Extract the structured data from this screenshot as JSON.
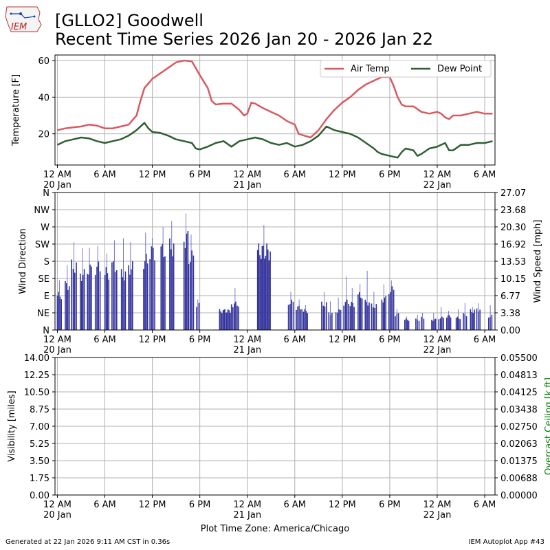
{
  "header": {
    "title_line1": "[GLLO2] Goodwell",
    "title_line2": "Recent Time Series 2026 Jan 20 - 2026 Jan 22",
    "logo_text": "IEM"
  },
  "footer": {
    "generated": "Generated at 22 Jan 2026 9:11 AM CST in 0.36s",
    "app": "IEM Autoplot App #43",
    "timezone_label": "Plot Time Zone: America/Chicago"
  },
  "colors": {
    "air_temp": "#d9595f",
    "dew_point": "#2e5e32",
    "wind_bar": "#333399",
    "ceiling_label": "#008000",
    "grid": "#b0b0b0"
  },
  "x_axis": {
    "range_hours": [
      -0.3,
      55.3
    ],
    "ticks": [
      {
        "hour": 0,
        "label": "12 AM",
        "date": "20 Jan"
      },
      {
        "hour": 6,
        "label": "6 AM",
        "date": ""
      },
      {
        "hour": 12,
        "label": "12 PM",
        "date": ""
      },
      {
        "hour": 18,
        "label": "6 PM",
        "date": ""
      },
      {
        "hour": 24,
        "label": "12 AM",
        "date": "21 Jan"
      },
      {
        "hour": 30,
        "label": "6 AM",
        "date": ""
      },
      {
        "hour": 36,
        "label": "12 PM",
        "date": ""
      },
      {
        "hour": 42,
        "label": "6 PM",
        "date": ""
      },
      {
        "hour": 48,
        "label": "12 AM",
        "date": "22 Jan"
      },
      {
        "hour": 54,
        "label": "6 AM",
        "date": ""
      }
    ]
  },
  "chart_data": [
    {
      "type": "line",
      "ylabel": "Temperature [F]",
      "ylim": [
        3,
        63
      ],
      "yticks": [
        20,
        40,
        60
      ],
      "grid": true,
      "legend_placement": "top-right",
      "series": [
        {
          "name": "Air Temp",
          "color": "#d9595f",
          "points": [
            [
              0,
              22
            ],
            [
              1,
              23
            ],
            [
              2,
              23.5
            ],
            [
              3,
              24
            ],
            [
              4,
              25
            ],
            [
              5,
              24.5
            ],
            [
              6,
              23
            ],
            [
              7,
              23
            ],
            [
              8,
              24
            ],
            [
              9,
              25
            ],
            [
              10,
              30
            ],
            [
              10.5,
              38
            ],
            [
              11,
              45
            ],
            [
              12,
              50
            ],
            [
              13,
              53
            ],
            [
              14,
              56
            ],
            [
              15,
              59
            ],
            [
              16,
              60
            ],
            [
              17,
              59.5
            ],
            [
              18,
              52
            ],
            [
              19,
              45
            ],
            [
              19.5,
              38
            ],
            [
              20,
              36
            ],
            [
              21,
              36.5
            ],
            [
              22,
              36.5
            ],
            [
              23,
              33
            ],
            [
              23.6,
              30
            ],
            [
              24,
              31
            ],
            [
              24.5,
              37
            ],
            [
              25,
              36.5
            ],
            [
              26,
              34
            ],
            [
              27,
              32
            ],
            [
              28,
              30
            ],
            [
              29,
              27
            ],
            [
              30,
              25
            ],
            [
              30.5,
              20
            ],
            [
              31.2,
              19
            ],
            [
              32,
              18
            ],
            [
              33,
              22
            ],
            [
              34,
              28
            ],
            [
              35,
              33
            ],
            [
              36,
              37
            ],
            [
              37,
              40
            ],
            [
              38,
              44
            ],
            [
              39,
              47
            ],
            [
              40,
              49
            ],
            [
              41,
              51
            ],
            [
              42,
              51
            ],
            [
              42.5,
              46
            ],
            [
              43,
              40
            ],
            [
              43.5,
              36
            ],
            [
              44,
              35
            ],
            [
              45,
              35
            ],
            [
              46,
              32
            ],
            [
              47,
              31
            ],
            [
              48,
              32
            ],
            [
              48.5,
              31
            ],
            [
              49,
              29
            ],
            [
              49.5,
              28
            ],
            [
              50,
              30
            ],
            [
              51,
              30
            ],
            [
              52,
              31
            ],
            [
              53,
              32
            ],
            [
              54,
              31
            ],
            [
              55,
              31
            ]
          ]
        },
        {
          "name": "Dew Point",
          "color": "#2e5e32",
          "points": [
            [
              0,
              14
            ],
            [
              1,
              16
            ],
            [
              2,
              17
            ],
            [
              3,
              18
            ],
            [
              4,
              17.5
            ],
            [
              5,
              16
            ],
            [
              6,
              15
            ],
            [
              7,
              16
            ],
            [
              8,
              17
            ],
            [
              9,
              19
            ],
            [
              10,
              22
            ],
            [
              11,
              26
            ],
            [
              11.5,
              23
            ],
            [
              12,
              21
            ],
            [
              13,
              20.5
            ],
            [
              14,
              19
            ],
            [
              15,
              17
            ],
            [
              16,
              16
            ],
            [
              17,
              15
            ],
            [
              17.5,
              12
            ],
            [
              18,
              11.5
            ],
            [
              19,
              13
            ],
            [
              20,
              15
            ],
            [
              21,
              16
            ],
            [
              22,
              13
            ],
            [
              23,
              16
            ],
            [
              24,
              17
            ],
            [
              25,
              18
            ],
            [
              26,
              17
            ],
            [
              27,
              15
            ],
            [
              28,
              14
            ],
            [
              29,
              15
            ],
            [
              30,
              13
            ],
            [
              31,
              14
            ],
            [
              32,
              16
            ],
            [
              33,
              19
            ],
            [
              34,
              24
            ],
            [
              35,
              22
            ],
            [
              36,
              21
            ],
            [
              37,
              20
            ],
            [
              38,
              18
            ],
            [
              39,
              15
            ],
            [
              40,
              12
            ],
            [
              40.5,
              10
            ],
            [
              41,
              9
            ],
            [
              42,
              8
            ],
            [
              43,
              7
            ],
            [
              43.5,
              10
            ],
            [
              44,
              12
            ],
            [
              45,
              11
            ],
            [
              45.5,
              8
            ],
            [
              46,
              9
            ],
            [
              47,
              12
            ],
            [
              48,
              13
            ],
            [
              49,
              15
            ],
            [
              49.5,
              11
            ],
            [
              50,
              11
            ],
            [
              51,
              14
            ],
            [
              52,
              14
            ],
            [
              53,
              15
            ],
            [
              54,
              15
            ],
            [
              55,
              16
            ]
          ]
        }
      ]
    },
    {
      "type": "bar",
      "ylabel": "Wind Direction",
      "y2label": "Wind Speed [mph]",
      "ylim": [
        0,
        360
      ],
      "y2lim": [
        0,
        27.07
      ],
      "yticks": [
        {
          "value": 0,
          "label": "N"
        },
        {
          "value": 45,
          "label": "NE"
        },
        {
          "value": 90,
          "label": "E"
        },
        {
          "value": 135,
          "label": "SE"
        },
        {
          "value": 180,
          "label": "S"
        },
        {
          "value": 225,
          "label": "SW"
        },
        {
          "value": 270,
          "label": "W"
        },
        {
          "value": 315,
          "label": "NW"
        },
        {
          "value": 360,
          "label": "N"
        }
      ],
      "y2ticks": [
        "0.00",
        "3.38",
        "6.77",
        "10.15",
        "13.53",
        "16.92",
        "20.30",
        "23.68",
        "27.07"
      ],
      "grid": true,
      "groups": [
        {
          "start": 0,
          "end": 0.5,
          "dir": 100,
          "gust": 130
        },
        {
          "start": 1,
          "end": 1.5,
          "dir": 130,
          "gust": 170
        },
        {
          "start": 1.8,
          "end": 2.4,
          "dir": 185,
          "gust": 230
        },
        {
          "start": 2.9,
          "end": 3.4,
          "dir": 160,
          "gust": 215
        },
        {
          "start": 3.8,
          "end": 4.3,
          "dir": 175,
          "gust": 215
        },
        {
          "start": 4.8,
          "end": 5.4,
          "dir": 180,
          "gust": 220
        },
        {
          "start": 6,
          "end": 6.5,
          "dir": 165,
          "gust": 200
        },
        {
          "start": 6.9,
          "end": 7.5,
          "dir": 185,
          "gust": 235
        },
        {
          "start": 8.1,
          "end": 8.6,
          "dir": 160,
          "gust": 240
        },
        {
          "start": 9,
          "end": 9.5,
          "dir": 180,
          "gust": 230
        },
        {
          "start": 10.9,
          "end": 11.4,
          "dir": 200,
          "gust": 255
        },
        {
          "start": 11.7,
          "end": 12.3,
          "dir": 225,
          "gust": 240
        },
        {
          "start": 13.1,
          "end": 13.6,
          "dir": 230,
          "gust": 270
        },
        {
          "start": 14.2,
          "end": 14.7,
          "dir": 240,
          "gust": 285
        },
        {
          "start": 16,
          "end": 16.5,
          "dir": 265,
          "gust": 305
        },
        {
          "start": 16.6,
          "end": 17.2,
          "dir": 210,
          "gust": 250
        },
        {
          "start": 17.6,
          "end": 17.9,
          "dir": 75,
          "gust": 80
        },
        {
          "start": 20.5,
          "end": 22,
          "dir": 55,
          "gust": 55
        },
        {
          "start": 22,
          "end": 22.9,
          "dir": 75,
          "gust": 110
        },
        {
          "start": 25.3,
          "end": 26.9,
          "dir": 228,
          "gust": 275
        },
        {
          "start": 29.2,
          "end": 29.8,
          "dir": 80,
          "gust": 100
        },
        {
          "start": 30.2,
          "end": 30.9,
          "dir": 65,
          "gust": 80
        },
        {
          "start": 31.1,
          "end": 31.6,
          "dir": 55,
          "gust": 65
        },
        {
          "start": 33.4,
          "end": 34,
          "dir": 75,
          "gust": 100
        },
        {
          "start": 34.3,
          "end": 34.7,
          "dir": 50,
          "gust": 75
        },
        {
          "start": 35.2,
          "end": 35.8,
          "dir": 55,
          "gust": 85
        },
        {
          "start": 36.2,
          "end": 36.8,
          "dir": 80,
          "gust": 140
        },
        {
          "start": 37,
          "end": 37.5,
          "dir": 75,
          "gust": 110
        },
        {
          "start": 38,
          "end": 38.5,
          "dir": 100,
          "gust": 120
        },
        {
          "start": 38.9,
          "end": 39.4,
          "dir": 80,
          "gust": 155
        },
        {
          "start": 39.7,
          "end": 40.3,
          "dir": 70,
          "gust": 100
        },
        {
          "start": 41,
          "end": 41.5,
          "dir": 90,
          "gust": 120
        },
        {
          "start": 41.9,
          "end": 42.5,
          "dir": 115,
          "gust": 130
        },
        {
          "start": 42.7,
          "end": 43.1,
          "dir": 45,
          "gust": 55
        },
        {
          "start": 43.9,
          "end": 44.4,
          "dir": 30,
          "gust": 35
        },
        {
          "start": 45.3,
          "end": 45.7,
          "dir": 30,
          "gust": 40
        },
        {
          "start": 46,
          "end": 46.3,
          "dir": 35,
          "gust": 45
        },
        {
          "start": 47.3,
          "end": 47.8,
          "dir": 30,
          "gust": 45
        },
        {
          "start": 48.2,
          "end": 48.8,
          "dir": 35,
          "gust": 60
        },
        {
          "start": 49.2,
          "end": 49.7,
          "dir": 40,
          "gust": 50
        },
        {
          "start": 50.4,
          "end": 50.9,
          "dir": 35,
          "gust": 55
        },
        {
          "start": 51.3,
          "end": 51.7,
          "dir": 45,
          "gust": 70
        },
        {
          "start": 52.2,
          "end": 52.7,
          "dir": 55,
          "gust": 60
        },
        {
          "start": 53,
          "end": 53.4,
          "dir": 60,
          "gust": 70
        },
        {
          "start": 54.5,
          "end": 54.9,
          "dir": 40,
          "gust": 65
        }
      ]
    },
    {
      "type": "line",
      "ylabel": "Visibility [miles]",
      "y2label": "Overcast Ceiling [k ft]",
      "ylim": [
        0,
        14
      ],
      "y2lim": [
        0,
        0.055
      ],
      "yticks": [
        "0.00",
        "1.75",
        "3.50",
        "5.25",
        "7.00",
        "8.75",
        "10.50",
        "12.25",
        "14.00"
      ],
      "y2ticks": [
        "0.00000",
        "0.00688",
        "0.01375",
        "0.02063",
        "0.02750",
        "0.03438",
        "0.04125",
        "0.04813",
        "0.05500"
      ],
      "grid": true,
      "series": []
    }
  ]
}
